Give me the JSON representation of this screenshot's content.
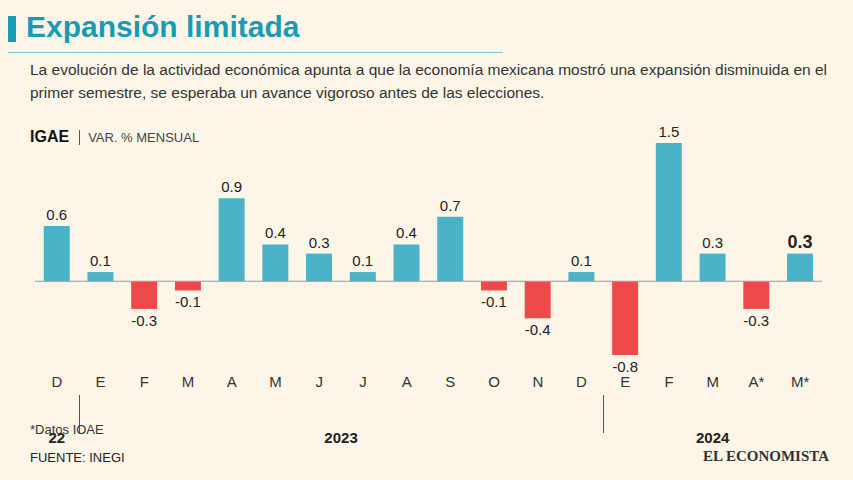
{
  "chart_data": {
    "type": "bar",
    "title": "Expansión limitada",
    "subtitle": "La evolución de la actividad económica apunta a que la economía mexicana mostró una expansión disminuida en el primer semestre, se esperaba un avance vigoroso antes de las elecciones.",
    "y_label": "IGAE",
    "y_unit_label": "VAR. % MENSUAL",
    "categories": [
      "D",
      "E",
      "F",
      "M",
      "A",
      "M",
      "J",
      "J",
      "A",
      "S",
      "O",
      "N",
      "D",
      "E",
      "F",
      "M",
      "A*",
      "M*"
    ],
    "values": [
      0.6,
      0.1,
      -0.3,
      -0.1,
      0.9,
      0.4,
      0.3,
      0.1,
      0.4,
      0.7,
      -0.1,
      -0.4,
      0.1,
      -0.8,
      1.5,
      0.3,
      -0.3,
      0.3
    ],
    "colors": [
      "#4bb3c8",
      "#4bb3c8",
      "#ef4a4a",
      "#ef4a4a",
      "#4bb3c8",
      "#4bb3c8",
      "#4bb3c8",
      "#4bb3c8",
      "#4bb3c8",
      "#4bb3c8",
      "#ef4a4a",
      "#ef4a4a",
      "#4bb3c8",
      "#ef4a4a",
      "#4bb3c8",
      "#4bb3c8",
      "#ef4a4a",
      "#4bb3c8"
    ],
    "groups": [
      {
        "label": "22",
        "from": 0,
        "to": 0
      },
      {
        "label": "2023",
        "from": 1,
        "to": 12
      },
      {
        "label": "2024",
        "from": 13,
        "to": 17
      }
    ],
    "ylim": [
      -0.8,
      1.5
    ],
    "data_labels": true,
    "tick_labels": "x",
    "notes": "*Datos IOAE",
    "source": "FUENTE: INEGI",
    "brand": "EL ECONOMISTA"
  }
}
